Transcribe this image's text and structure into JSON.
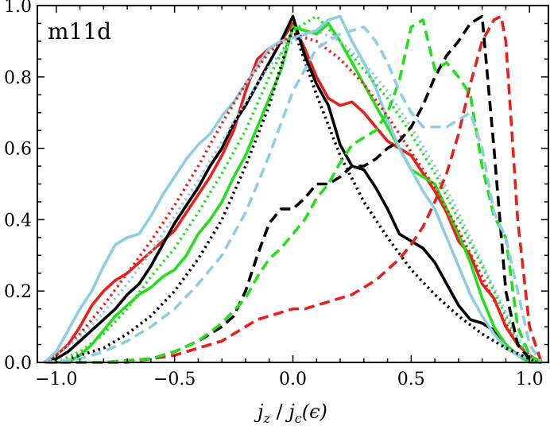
{
  "chart_data": {
    "type": "line",
    "title": "",
    "panel_label": "m11d",
    "xlabel": "j_z / j_c(ε)",
    "xlabel_parts": {
      "num": "j",
      "num_sub": "z",
      "sep": " / ",
      "den": "j",
      "den_sub": "c",
      "arg": "(ϵ)"
    },
    "ylabel": "",
    "xlim": [
      -1.08,
      1.08
    ],
    "ylim": [
      0.0,
      1.0
    ],
    "x_ticks": [
      -1.0,
      -0.5,
      0.0,
      0.5,
      1.0
    ],
    "x_tick_labels": [
      "−1.0",
      "−0.5",
      "0.0",
      "0.5",
      "1.0"
    ],
    "y_ticks": [
      0.0,
      0.2,
      0.4,
      0.6,
      0.8,
      1.0
    ],
    "y_tick_labels": [
      "0.0",
      "0.2",
      "0.4",
      "0.6",
      "0.8",
      "1.0"
    ],
    "grid": false,
    "colors": {
      "red": "#e8201c",
      "black": "#000000",
      "green": "#22e01c",
      "light_blue": "#8ecde4"
    },
    "series": [
      {
        "name": "red-solid",
        "color": "#e8201c",
        "style": "solid",
        "x": [
          -1.05,
          -1.0,
          -0.95,
          -0.9,
          -0.85,
          -0.8,
          -0.75,
          -0.7,
          -0.65,
          -0.6,
          -0.55,
          -0.5,
          -0.45,
          -0.4,
          -0.35,
          -0.3,
          -0.25,
          -0.2,
          -0.15,
          -0.1,
          -0.05,
          0.0,
          0.05,
          0.1,
          0.15,
          0.2,
          0.25,
          0.3,
          0.35,
          0.4,
          0.45,
          0.5,
          0.55,
          0.6,
          0.65,
          0.7,
          0.75,
          0.8,
          0.85,
          0.9,
          0.95,
          1.0,
          1.05
        ],
        "y": [
          0.0,
          0.02,
          0.05,
          0.1,
          0.16,
          0.2,
          0.23,
          0.25,
          0.28,
          0.31,
          0.34,
          0.37,
          0.42,
          0.47,
          0.52,
          0.58,
          0.65,
          0.76,
          0.85,
          0.88,
          0.9,
          0.95,
          0.88,
          0.8,
          0.74,
          0.72,
          0.73,
          0.7,
          0.66,
          0.62,
          0.6,
          0.58,
          0.53,
          0.48,
          0.42,
          0.34,
          0.3,
          0.22,
          0.18,
          0.1,
          0.05,
          0.02,
          0.0
        ]
      },
      {
        "name": "black-solid",
        "color": "#000000",
        "style": "solid",
        "x": [
          -1.05,
          -1.0,
          -0.95,
          -0.9,
          -0.85,
          -0.8,
          -0.75,
          -0.7,
          -0.65,
          -0.6,
          -0.55,
          -0.5,
          -0.45,
          -0.4,
          -0.35,
          -0.3,
          -0.25,
          -0.2,
          -0.15,
          -0.1,
          -0.05,
          0.0,
          0.05,
          0.1,
          0.15,
          0.2,
          0.25,
          0.3,
          0.35,
          0.4,
          0.45,
          0.5,
          0.55,
          0.6,
          0.65,
          0.7,
          0.75,
          0.8,
          0.85,
          0.9,
          0.95,
          1.0,
          1.05
        ],
        "y": [
          0.0,
          0.01,
          0.03,
          0.06,
          0.09,
          0.12,
          0.15,
          0.19,
          0.22,
          0.27,
          0.33,
          0.39,
          0.44,
          0.49,
          0.55,
          0.6,
          0.67,
          0.72,
          0.78,
          0.84,
          0.9,
          0.97,
          0.86,
          0.78,
          0.72,
          0.61,
          0.55,
          0.54,
          0.49,
          0.43,
          0.36,
          0.34,
          0.32,
          0.28,
          0.22,
          0.16,
          0.12,
          0.11,
          0.09,
          0.05,
          0.02,
          0.01,
          0.0
        ]
      },
      {
        "name": "green-solid",
        "color": "#22e01c",
        "style": "solid",
        "x": [
          -1.05,
          -0.95,
          -0.9,
          -0.85,
          -0.8,
          -0.75,
          -0.7,
          -0.65,
          -0.6,
          -0.55,
          -0.5,
          -0.45,
          -0.4,
          -0.35,
          -0.3,
          -0.25,
          -0.2,
          -0.15,
          -0.1,
          -0.05,
          0.0,
          0.05,
          0.1,
          0.15,
          0.2,
          0.25,
          0.3,
          0.35,
          0.4,
          0.45,
          0.5,
          0.55,
          0.6,
          0.65,
          0.7,
          0.75,
          0.8,
          0.85,
          0.9,
          0.95,
          1.0,
          1.05
        ],
        "y": [
          0.0,
          0.0,
          0.02,
          0.05,
          0.09,
          0.13,
          0.16,
          0.19,
          0.21,
          0.24,
          0.26,
          0.3,
          0.36,
          0.4,
          0.45,
          0.52,
          0.58,
          0.66,
          0.74,
          0.82,
          0.94,
          0.93,
          0.92,
          0.95,
          0.9,
          0.84,
          0.78,
          0.72,
          0.66,
          0.6,
          0.54,
          0.52,
          0.5,
          0.43,
          0.36,
          0.28,
          0.18,
          0.1,
          0.05,
          0.02,
          0.0,
          0.0
        ]
      },
      {
        "name": "light-blue-solid",
        "color": "#8ecde4",
        "style": "solid",
        "x": [
          -1.05,
          -1.0,
          -0.95,
          -0.9,
          -0.85,
          -0.8,
          -0.75,
          -0.7,
          -0.65,
          -0.6,
          -0.55,
          -0.5,
          -0.45,
          -0.4,
          -0.35,
          -0.3,
          -0.25,
          -0.2,
          -0.15,
          -0.1,
          -0.05,
          0.0,
          0.05,
          0.1,
          0.15,
          0.2,
          0.25,
          0.3,
          0.35,
          0.4,
          0.45,
          0.5,
          0.55,
          0.6,
          0.65,
          0.7,
          0.75,
          0.8,
          0.85,
          0.9,
          0.95,
          1.0,
          1.05
        ],
        "y": [
          0.0,
          0.03,
          0.09,
          0.15,
          0.2,
          0.27,
          0.33,
          0.35,
          0.36,
          0.41,
          0.47,
          0.52,
          0.57,
          0.61,
          0.64,
          0.69,
          0.73,
          0.78,
          0.83,
          0.88,
          0.9,
          0.91,
          0.92,
          0.93,
          0.96,
          0.97,
          0.9,
          0.84,
          0.77,
          0.68,
          0.6,
          0.54,
          0.48,
          0.43,
          0.35,
          0.27,
          0.19,
          0.13,
          0.08,
          0.04,
          0.02,
          0.01,
          0.0
        ]
      },
      {
        "name": "red-dotted",
        "color": "#e8201c",
        "style": "dotted",
        "x": [
          -1.05,
          -1.0,
          -0.9,
          -0.8,
          -0.7,
          -0.6,
          -0.5,
          -0.4,
          -0.3,
          -0.2,
          -0.1,
          0.0,
          0.1,
          0.2,
          0.3,
          0.4,
          0.5,
          0.6,
          0.7,
          0.8,
          0.9,
          0.95,
          1.0,
          1.05
        ],
        "y": [
          0.0,
          0.02,
          0.08,
          0.16,
          0.25,
          0.34,
          0.44,
          0.55,
          0.67,
          0.78,
          0.87,
          0.92,
          0.9,
          0.85,
          0.78,
          0.69,
          0.59,
          0.49,
          0.37,
          0.24,
          0.11,
          0.05,
          0.02,
          0.0
        ]
      },
      {
        "name": "black-dotted",
        "color": "#000000",
        "style": "dotted",
        "x": [
          -1.05,
          -1.0,
          -0.9,
          -0.8,
          -0.7,
          -0.6,
          -0.5,
          -0.4,
          -0.3,
          -0.2,
          -0.1,
          0.0,
          0.1,
          0.2,
          0.3,
          0.4,
          0.5,
          0.6,
          0.7,
          0.8,
          0.9,
          1.0,
          1.05
        ],
        "y": [
          0.0,
          0.0,
          0.02,
          0.04,
          0.08,
          0.13,
          0.2,
          0.29,
          0.4,
          0.55,
          0.72,
          0.94,
          0.75,
          0.58,
          0.45,
          0.35,
          0.26,
          0.19,
          0.13,
          0.08,
          0.04,
          0.01,
          0.0
        ]
      },
      {
        "name": "green-dotted",
        "color": "#22e01c",
        "style": "dotted",
        "x": [
          -1.05,
          -1.0,
          -0.9,
          -0.8,
          -0.7,
          -0.6,
          -0.5,
          -0.4,
          -0.3,
          -0.2,
          -0.1,
          0.0,
          0.1,
          0.2,
          0.3,
          0.4,
          0.5,
          0.6,
          0.7,
          0.8,
          0.9,
          0.95,
          1.0,
          1.05
        ],
        "y": [
          0.0,
          0.0,
          0.03,
          0.08,
          0.15,
          0.24,
          0.32,
          0.42,
          0.53,
          0.65,
          0.8,
          0.93,
          0.97,
          0.9,
          0.82,
          0.74,
          0.64,
          0.53,
          0.4,
          0.27,
          0.13,
          0.06,
          0.02,
          0.0
        ]
      },
      {
        "name": "light-blue-dotted",
        "color": "#8ecde4",
        "style": "dotted",
        "x": [
          -1.05,
          -1.0,
          -0.9,
          -0.8,
          -0.7,
          -0.6,
          -0.5,
          -0.4,
          -0.3,
          -0.2,
          -0.1,
          0.0,
          0.1,
          0.2,
          0.3,
          0.4,
          0.5,
          0.6,
          0.7,
          0.8,
          0.9,
          0.95,
          1.0,
          1.05
        ],
        "y": [
          0.0,
          0.02,
          0.07,
          0.14,
          0.22,
          0.31,
          0.41,
          0.51,
          0.62,
          0.73,
          0.83,
          0.9,
          0.93,
          0.9,
          0.84,
          0.76,
          0.66,
          0.55,
          0.42,
          0.28,
          0.14,
          0.07,
          0.02,
          0.0
        ]
      },
      {
        "name": "red-dashed",
        "color": "#e8201c",
        "style": "dashed",
        "x": [
          -1.05,
          -0.9,
          -0.8,
          -0.7,
          -0.6,
          -0.5,
          -0.4,
          -0.3,
          -0.25,
          -0.2,
          -0.15,
          -0.1,
          -0.05,
          0.0,
          0.05,
          0.1,
          0.15,
          0.2,
          0.25,
          0.3,
          0.35,
          0.4,
          0.45,
          0.5,
          0.55,
          0.6,
          0.65,
          0.7,
          0.75,
          0.8,
          0.85,
          0.88,
          0.9,
          0.92,
          0.95,
          1.0,
          1.05
        ],
        "y": [
          0.0,
          0.0,
          0.0,
          0.0,
          0.01,
          0.02,
          0.04,
          0.06,
          0.08,
          0.1,
          0.12,
          0.13,
          0.14,
          0.15,
          0.15,
          0.16,
          0.17,
          0.18,
          0.19,
          0.21,
          0.23,
          0.26,
          0.29,
          0.33,
          0.38,
          0.45,
          0.53,
          0.64,
          0.78,
          0.9,
          0.96,
          0.97,
          0.9,
          0.7,
          0.4,
          0.1,
          0.0
        ]
      },
      {
        "name": "black-dashed",
        "color": "#000000",
        "style": "dashed",
        "x": [
          -1.05,
          -0.8,
          -0.6,
          -0.5,
          -0.4,
          -0.3,
          -0.25,
          -0.2,
          -0.15,
          -0.1,
          -0.05,
          0.0,
          0.05,
          0.1,
          0.15,
          0.2,
          0.25,
          0.3,
          0.35,
          0.4,
          0.45,
          0.5,
          0.55,
          0.6,
          0.65,
          0.7,
          0.75,
          0.8,
          0.85,
          0.9,
          0.95,
          1.0,
          1.05
        ],
        "y": [
          0.0,
          0.0,
          0.01,
          0.03,
          0.06,
          0.1,
          0.13,
          0.2,
          0.3,
          0.39,
          0.43,
          0.43,
          0.46,
          0.5,
          0.5,
          0.52,
          0.55,
          0.55,
          0.57,
          0.6,
          0.62,
          0.66,
          0.72,
          0.8,
          0.86,
          0.9,
          0.95,
          0.97,
          0.6,
          0.2,
          0.05,
          0.01,
          0.0
        ]
      },
      {
        "name": "green-dashed",
        "color": "#22e01c",
        "style": "dashed",
        "x": [
          -1.05,
          -0.8,
          -0.6,
          -0.5,
          -0.4,
          -0.3,
          -0.2,
          -0.15,
          -0.1,
          -0.05,
          0.0,
          0.05,
          0.1,
          0.15,
          0.2,
          0.25,
          0.3,
          0.35,
          0.4,
          0.45,
          0.5,
          0.55,
          0.6,
          0.65,
          0.7,
          0.75,
          0.8,
          0.85,
          0.9,
          0.95,
          1.0,
          1.05
        ],
        "y": [
          0.0,
          0.0,
          0.01,
          0.03,
          0.06,
          0.11,
          0.18,
          0.24,
          0.29,
          0.32,
          0.36,
          0.4,
          0.46,
          0.5,
          0.56,
          0.61,
          0.63,
          0.65,
          0.7,
          0.79,
          0.94,
          0.96,
          0.82,
          0.84,
          0.8,
          0.75,
          0.55,
          0.41,
          0.35,
          0.1,
          0.02,
          0.0
        ]
      },
      {
        "name": "light-blue-dashed",
        "color": "#8ecde4",
        "style": "dashed",
        "x": [
          -1.05,
          -0.9,
          -0.8,
          -0.7,
          -0.6,
          -0.5,
          -0.4,
          -0.3,
          -0.2,
          -0.1,
          0.0,
          0.1,
          0.2,
          0.3,
          0.35,
          0.4,
          0.45,
          0.5,
          0.55,
          0.6,
          0.65,
          0.7,
          0.75,
          0.8,
          0.85,
          0.9,
          0.95,
          1.0,
          1.05
        ],
        "y": [
          0.0,
          0.01,
          0.03,
          0.06,
          0.1,
          0.15,
          0.22,
          0.3,
          0.42,
          0.58,
          0.76,
          0.88,
          0.92,
          0.94,
          0.9,
          0.84,
          0.76,
          0.7,
          0.66,
          0.66,
          0.66,
          0.68,
          0.7,
          0.6,
          0.42,
          0.35,
          0.2,
          0.05,
          0.0
        ]
      }
    ]
  }
}
